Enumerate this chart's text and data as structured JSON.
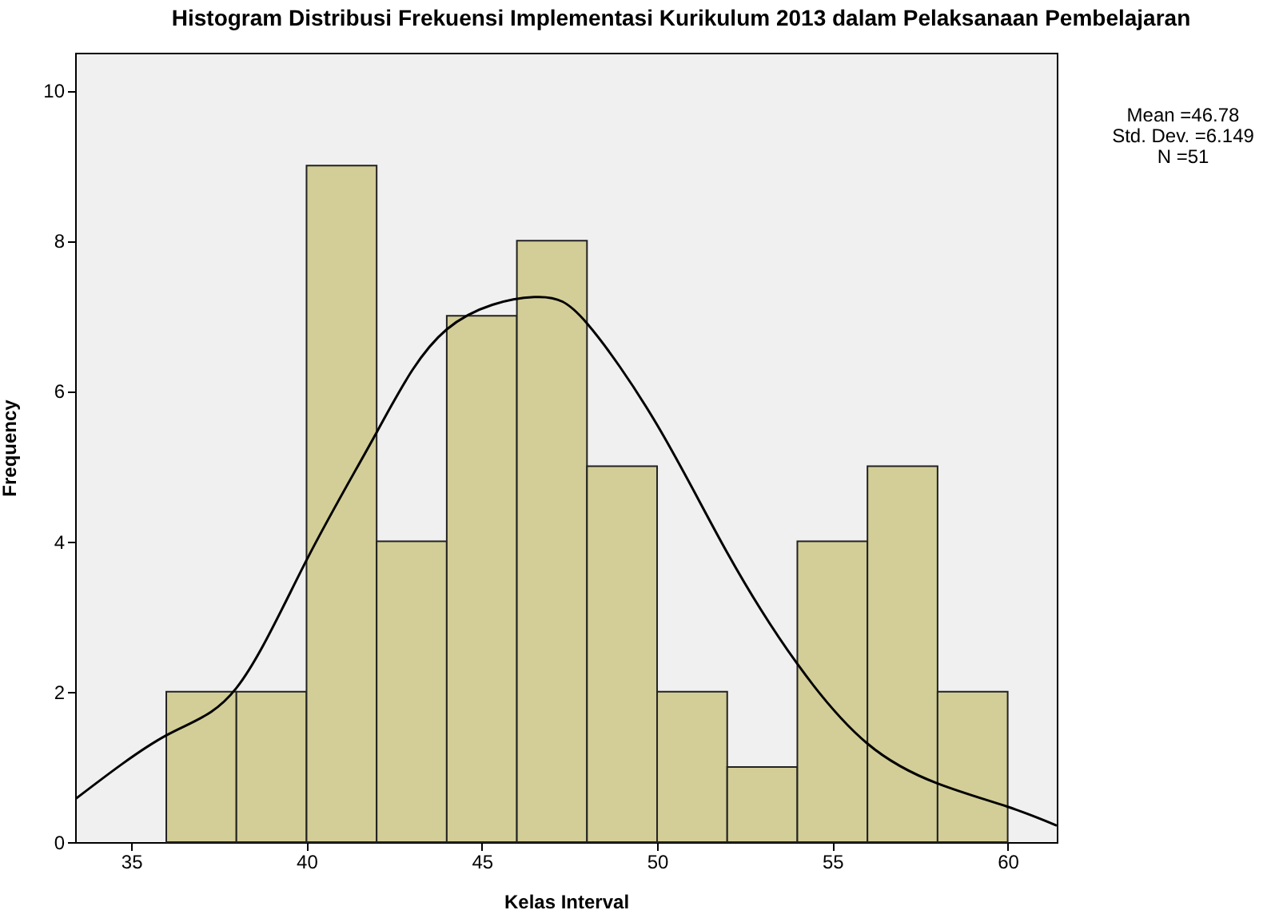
{
  "chart_data": {
    "type": "histogram",
    "title": "Histogram Distribusi Frekuensi Implementasi Kurikulum 2013 dalam Pelaksanaan Pembelajaran",
    "xlabel": "Kelas Interval",
    "ylabel": "Frequency",
    "bins": [
      36,
      38,
      40,
      42,
      44,
      46,
      48,
      50,
      52,
      54,
      56,
      58,
      60
    ],
    "xlim": [
      33.4,
      61.4
    ],
    "xticks": [
      35,
      40,
      45,
      50,
      55,
      60
    ],
    "ylim": [
      0,
      10.5
    ],
    "yticks": [
      0,
      2,
      4,
      6,
      8,
      10
    ],
    "grid": false,
    "series": [
      {
        "type": "histogram",
        "color": "#d3ce97",
        "values": [
          2,
          2,
          9,
          4,
          7,
          8,
          5,
          2,
          1,
          4,
          5,
          2
        ]
      },
      {
        "type": "line",
        "color": "#000000",
        "x": [
          33.4,
          36,
          38,
          40,
          42,
          44,
          46.5,
          48,
          50,
          52,
          54,
          56,
          58,
          60,
          61.4
        ],
        "values": [
          0.57,
          1.42,
          2.05,
          3.75,
          5.45,
          6.82,
          7.25,
          6.9,
          5.55,
          3.85,
          2.37,
          1.31,
          0.78,
          0.47,
          0.22
        ]
      }
    ],
    "annotations": [
      "Mean =46.78",
      "Std. Dev. =6.149",
      "N =51"
    ]
  }
}
